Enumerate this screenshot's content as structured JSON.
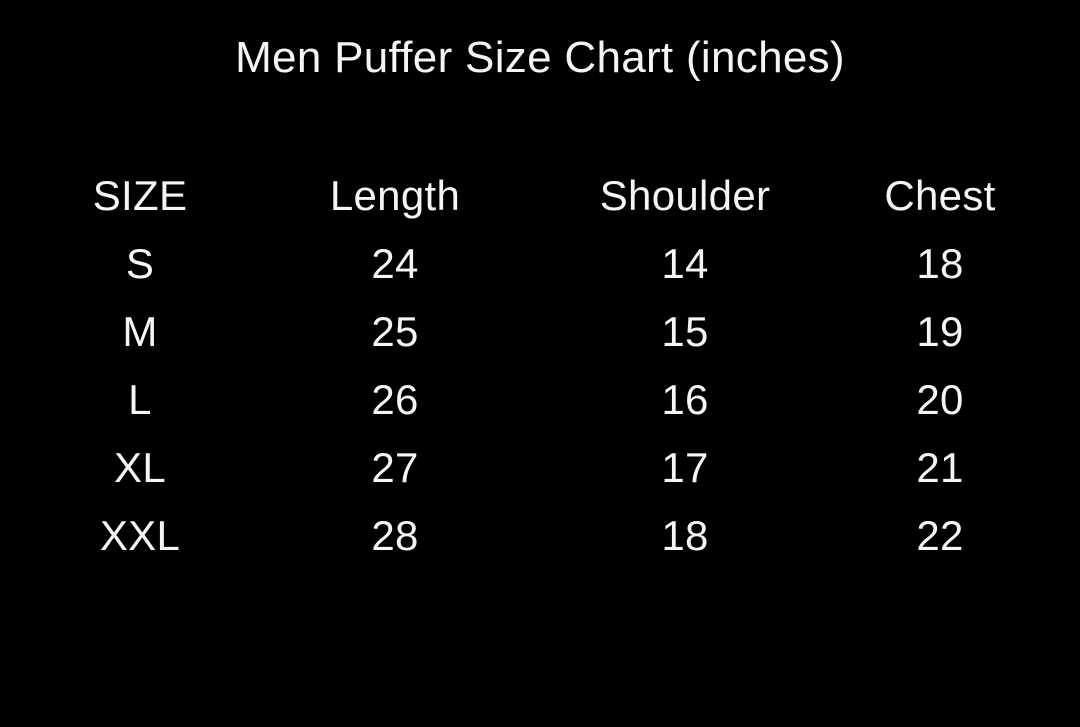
{
  "colors": {
    "background": "#000000",
    "text": "#f5f5f5"
  },
  "chart_data": {
    "type": "table",
    "title": "Men Puffer Size Chart (inches)",
    "units": "inches",
    "columns": [
      "SIZE",
      "Length",
      "Shoulder",
      "Chest"
    ],
    "rows": [
      [
        "S",
        "24",
        "14",
        "18"
      ],
      [
        "M",
        "25",
        "15",
        "19"
      ],
      [
        "L",
        "26",
        "16",
        "20"
      ],
      [
        "XL",
        "27",
        "17",
        "21"
      ],
      [
        "XXL",
        "28",
        "18",
        "22"
      ]
    ]
  }
}
